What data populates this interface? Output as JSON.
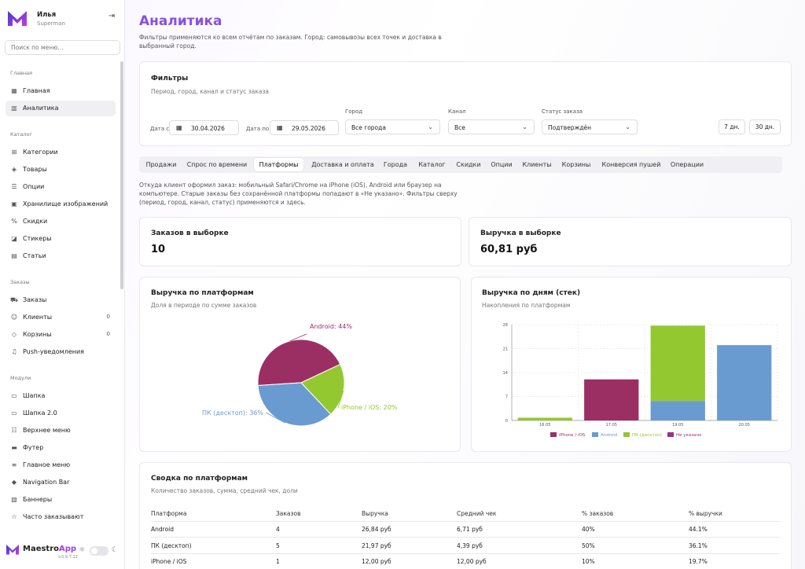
{
  "user": {
    "name": "Илья",
    "role": "Superman"
  },
  "search": {
    "placeholder": "Поиск по меню..."
  },
  "nav": {
    "sections": {
      "main": "Главная",
      "catalog": "Каталог",
      "orders": "Заказы",
      "modules": "Модули"
    },
    "items": [
      {
        "label": "Главная",
        "icon": "grid-icon"
      },
      {
        "label": "Аналитика",
        "icon": "chart-icon"
      },
      {
        "label": "Категории",
        "icon": "category-icon"
      },
      {
        "label": "Товары",
        "icon": "box-icon"
      },
      {
        "label": "Опции",
        "icon": "list-icon"
      },
      {
        "label": "Хранилище изображений",
        "icon": "image-icon"
      },
      {
        "label": "Скидки",
        "icon": "percent-icon"
      },
      {
        "label": "Стикеры",
        "icon": "sticker-icon"
      },
      {
        "label": "Статьи",
        "icon": "article-icon"
      },
      {
        "label": "Заказы",
        "icon": "cart-icon"
      },
      {
        "label": "Клиенты",
        "icon": "users-icon",
        "count": "0"
      },
      {
        "label": "Корзины",
        "icon": "basket-icon",
        "count": "0"
      },
      {
        "label": "Push-уведомления",
        "icon": "bell-icon"
      },
      {
        "label": "Шапка",
        "icon": "header-icon"
      },
      {
        "label": "Шапка 2.0",
        "icon": "header2-icon"
      },
      {
        "label": "Верхнее меню",
        "icon": "menu-icon"
      },
      {
        "label": "Футер",
        "icon": "footer-icon"
      },
      {
        "label": "Главное меню",
        "icon": "main-menu-icon"
      },
      {
        "label": "Navigation Bar",
        "icon": "navbar-icon"
      },
      {
        "label": "Баннеры",
        "icon": "banner-icon"
      },
      {
        "label": "Часто заказывают",
        "icon": "star-icon"
      }
    ]
  },
  "brand": {
    "name_a": "Maestro",
    "name_b": "App",
    "version": "v.0.9.7.12"
  },
  "page": {
    "title": "Аналитика",
    "description": "Фильтры применяются ко всем отчётам по заказам. Город: самовывозы всех точек и доставка в выбранный город."
  },
  "filters": {
    "title": "Фильтры",
    "subtitle": "Период, город, канал и статус заказа",
    "date_from_label": "Дата с",
    "date_from": "30.04.2026",
    "date_to_label": "Дата по",
    "date_to": "29.05.2026",
    "city_label": "Город",
    "city": "Все города",
    "channel_label": "Канал",
    "channel": "Все",
    "status_label": "Статус заказа",
    "status": "Подтверждён",
    "btn_7": "7 дн.",
    "btn_30": "30 дн."
  },
  "tabs": [
    "Продажи",
    "Спрос по времени",
    "Платформы",
    "Доставка и оплата",
    "Города",
    "Каталог",
    "Скидки",
    "Опции",
    "Клиенты",
    "Корзины",
    "Конверсия пушей",
    "Операции"
  ],
  "active_tab": "Платформы",
  "platform_note": "Откуда клиент оформил заказ: мобильный Safari/Chrome на iPhone (iOS), Android или браузер на компьютере. Старые заказы без сохранённой платформы попадают в «Не указано». Фильтры сверху (период, город, канал, статус) применяются и здесь.",
  "kpi": {
    "orders_label": "Заказов в выборке",
    "orders_value": "10",
    "revenue_label": "Выручка в выборке",
    "revenue_value": "60,81 руб"
  },
  "pie_card": {
    "title": "Выручка по платформам",
    "subtitle": "Доля в периоде по сумме заказов"
  },
  "bar_card": {
    "title": "Выручка по дням (стек)",
    "subtitle": "Накопления по платформам"
  },
  "chart_data": [
    {
      "type": "pie",
      "slices": [
        {
          "label": "Android: 44%",
          "value": 44,
          "color": "#9b2f63"
        },
        {
          "label": "iPhone / iOS: 20%",
          "value": 20,
          "color": "#93c831"
        },
        {
          "label": "ПК (десктоп): 36%",
          "value": 36,
          "color": "#6a9bd0"
        }
      ]
    },
    {
      "type": "bar",
      "stacked": true,
      "categories": [
        "16.05",
        "17.05",
        "19.05",
        "20.05"
      ],
      "ylim": [
        0,
        28
      ],
      "yticks": [
        "0",
        "7",
        "14",
        "21",
        "28"
      ],
      "series": [
        {
          "name": "iPhone / iOS",
          "color": "#9b2f63",
          "values": [
            0,
            12,
            0,
            0
          ]
        },
        {
          "name": "Android",
          "color": "#6a9bd0",
          "values": [
            0,
            0,
            5.7,
            22
          ]
        },
        {
          "name": "ПК (десктоп)",
          "color": "#93c831",
          "values": [
            0.8,
            0,
            22,
            0
          ]
        },
        {
          "name": "Не указано",
          "color": "#9b2f8f",
          "values": [
            0,
            0,
            0,
            0
          ]
        }
      ],
      "legend": "bottom"
    }
  ],
  "summary": {
    "title": "Сводка по платформам",
    "subtitle": "Количество заказов, сумма, средний чек, доли",
    "headers": [
      "Платформа",
      "Заказов",
      "Выручка",
      "Средний чек",
      "% заказов",
      "% выручки"
    ],
    "rows": [
      [
        "Android",
        "4",
        "26,84 руб",
        "6,71 руб",
        "40%",
        "44.1%"
      ],
      [
        "ПК (десктоп)",
        "5",
        "21,97 руб",
        "4,39 руб",
        "50%",
        "36.1%"
      ],
      [
        "iPhone / iOS",
        "1",
        "12,00 руб",
        "12,00 руб",
        "10%",
        "19.7%"
      ]
    ]
  }
}
